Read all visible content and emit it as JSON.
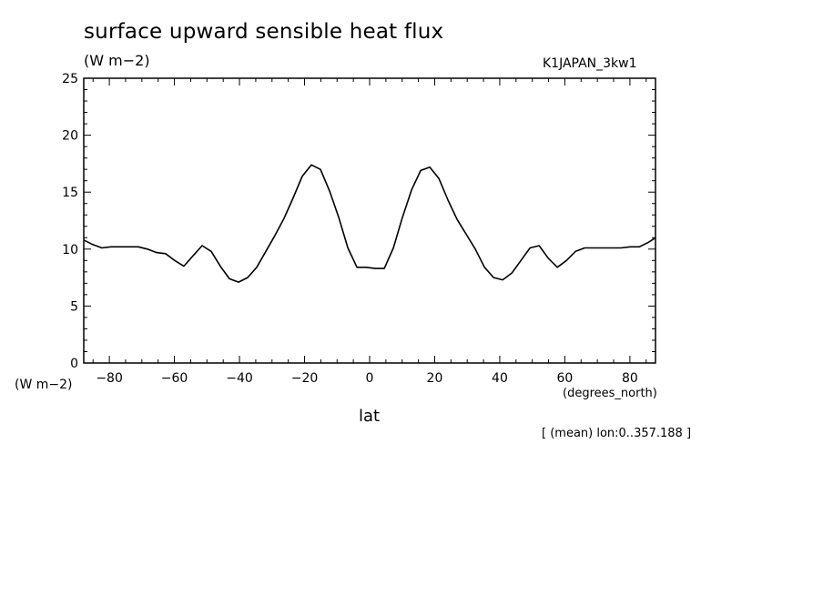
{
  "chart_data": {
    "type": "line",
    "title": "surface upward sensible heat flux",
    "units": "(W m−2)",
    "run_name": "K1JAPAN_3kw1",
    "ylabel": "(W m−2)",
    "xlabel": "lat",
    "xunits": "(degrees_north)",
    "note": "[ (mean) lon:0..357.188 ]",
    "xlim": [
      -87.864,
      87.864
    ],
    "ylim": [
      0,
      25
    ],
    "xticks": [
      -80,
      -60,
      -40,
      -20,
      0,
      20,
      40,
      60,
      80
    ],
    "yticks": [
      0,
      5,
      10,
      15,
      20,
      25
    ],
    "series": [
      {
        "x": [
          -87.9,
          -85.1,
          -82.3,
          -79.5,
          -76.7,
          -73.9,
          -71.1,
          -68.3,
          -65.5,
          -62.7,
          -59.9,
          -57.1,
          -54.3,
          -51.5,
          -48.7,
          -45.9,
          -43.1,
          -40.3,
          -37.5,
          -34.7,
          -31.9,
          -29.1,
          -26.3,
          -23.5,
          -20.7,
          -17.9,
          -15.1,
          -12.3,
          -9.5,
          -6.7,
          -3.9,
          -1.1,
          1.7,
          4.5,
          7.3,
          10.1,
          12.9,
          15.7,
          18.5,
          21.3,
          24.1,
          26.9,
          29.7,
          32.5,
          35.3,
          38.1,
          40.9,
          43.7,
          46.5,
          49.3,
          52.1,
          54.9,
          57.7,
          60.5,
          63.3,
          66.1,
          68.9,
          71.7,
          74.5,
          77.3,
          80.1,
          82.9,
          85.7,
          87.9
        ],
        "y": [
          10.8,
          10.4,
          10.1,
          10.2,
          10.2,
          10.2,
          10.2,
          10.0,
          9.7,
          9.6,
          9.0,
          8.5,
          9.4,
          10.3,
          9.8,
          8.5,
          7.4,
          7.1,
          7.5,
          8.4,
          9.8,
          11.2,
          12.7,
          14.5,
          16.4,
          17.4,
          17.0,
          15.1,
          12.8,
          10.1,
          8.4,
          8.4,
          8.3,
          8.3,
          10.1,
          12.8,
          15.2,
          16.9,
          17.2,
          16.2,
          14.3,
          12.6,
          11.3,
          10.0,
          8.4,
          7.5,
          7.3,
          7.9,
          9.0,
          10.1,
          10.3,
          9.2,
          8.4,
          9.0,
          9.8,
          10.1,
          10.1,
          10.1,
          10.1,
          10.1,
          10.2,
          10.2,
          10.6,
          11.0
        ]
      }
    ]
  }
}
